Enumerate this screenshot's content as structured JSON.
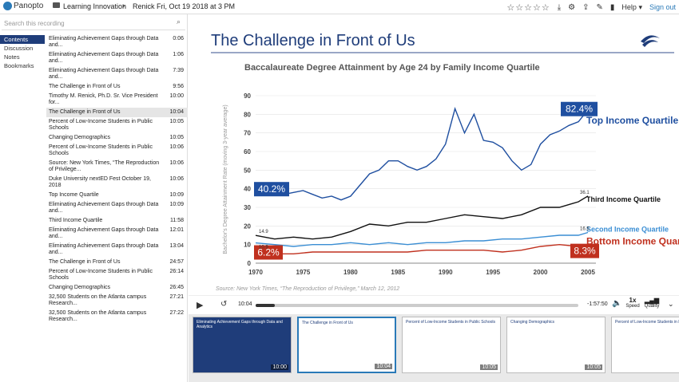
{
  "topbar": {
    "logo_text": "Panopto",
    "folder": "Learning Innovation",
    "session": "Renick Fri, Oct 19 2018 at 3 PM",
    "help_label": "Help",
    "signout_label": "Sign out"
  },
  "sidebar": {
    "search_placeholder": "Search this recording",
    "tabs": [
      "Contents",
      "Discussion",
      "Notes",
      "Bookmarks"
    ],
    "items": [
      {
        "title": "Eliminating Achievement Gaps through Data and...",
        "time": "0:06"
      },
      {
        "title": "Eliminating Achievement Gaps through Data and...",
        "time": "1:06"
      },
      {
        "title": "Eliminating Achievement Gaps through Data and...",
        "time": "7:39"
      },
      {
        "title": "The Challenge in Front of Us",
        "time": "9:56"
      },
      {
        "title": "Timothy M. Renick, Ph.D. Sr. Vice President for...",
        "time": "10:00"
      },
      {
        "title": "The Challenge in Front of Us",
        "time": "10:04"
      },
      {
        "title": "Percent of Low-Income Students in Public Schools",
        "time": "10:05"
      },
      {
        "title": "Changing Demographics",
        "time": "10:05"
      },
      {
        "title": "Percent of Low-Income Students in Public Schools",
        "time": "10:06"
      },
      {
        "title": "Source: New York Times, “The Reproduction of Privilege...",
        "time": "10:06"
      },
      {
        "title": "Duke University nextED Fest October 19, 2018",
        "time": "10:06"
      },
      {
        "title": "Top Income Quartile",
        "time": "10:09"
      },
      {
        "title": "Eliminating Achievement Gaps through Data and...",
        "time": "10:09"
      },
      {
        "title": "Third Income Quartile",
        "time": "11:58"
      },
      {
        "title": "Eliminating Achievement Gaps through Data and...",
        "time": "12:01"
      },
      {
        "title": "Eliminating Achievement Gaps through Data and...",
        "time": "13:04"
      },
      {
        "title": "The Challenge in Front of Us",
        "time": "24:57"
      },
      {
        "title": "Percent of Low-Income Students in Public Schools",
        "time": "26:14"
      },
      {
        "title": "Changing Demographics",
        "time": "26:45"
      },
      {
        "title": "32,500 Students on the Atlanta campus Research...",
        "time": "27:21"
      },
      {
        "title": "32,500 Students on the Atlanta campus Research...",
        "time": "27:22"
      }
    ]
  },
  "slide": {
    "title": "The Challenge in Front of Us",
    "source": "Source: New York Times, “The Reproduction of Privilege,” March 12, 2012"
  },
  "chart_data": {
    "type": "line",
    "title": "Baccalaureate Degree Attainment by Age 24 by Family Income Quartile",
    "ylabel": "Bachelor's Degree Attainment Rate (moving 3-year average)",
    "ylim": [
      0,
      90
    ],
    "xlim": [
      1970,
      2005
    ],
    "x_ticks": [
      1970,
      1975,
      1980,
      1985,
      1990,
      1995,
      2000,
      2005
    ],
    "y_ticks": [
      0,
      10,
      20,
      30,
      40,
      50,
      60,
      70,
      80,
      90
    ],
    "series": [
      {
        "name": "Top Income Quartile",
        "color": "#1f4fa0",
        "x": [
          1970,
          1971,
          1972,
          1973,
          1974,
          1975,
          1976,
          1977,
          1978,
          1979,
          1980,
          1981,
          1982,
          1983,
          1984,
          1985,
          1986,
          1987,
          1988,
          1989,
          1990,
          1991,
          1992,
          1993,
          1994,
          1995,
          1996,
          1997,
          1998,
          1999,
          2000,
          2001,
          2002,
          2003,
          2004,
          2005
        ],
        "y": [
          40.2,
          42,
          38,
          37,
          38,
          39,
          37,
          35,
          36,
          34,
          36,
          42,
          48,
          50,
          55,
          55,
          52,
          50,
          52,
          56,
          64,
          83,
          70,
          80,
          66,
          65,
          62,
          55,
          50,
          53,
          64,
          69,
          71,
          74,
          76,
          82.4
        ]
      },
      {
        "name": "Third Income Quartile",
        "color": "#111111",
        "x": [
          1970,
          1972,
          1974,
          1976,
          1978,
          1980,
          1982,
          1984,
          1986,
          1988,
          1990,
          1992,
          1994,
          1996,
          1998,
          2000,
          2002,
          2004,
          2005
        ],
        "y": [
          14.9,
          13,
          14,
          13,
          14,
          17,
          21,
          20,
          22,
          22,
          24,
          26,
          25,
          24,
          26,
          30,
          30,
          33,
          36.1
        ]
      },
      {
        "name": "Second Income Quartile",
        "color": "#3a8ed4",
        "x": [
          1970,
          1972,
          1974,
          1976,
          1978,
          1980,
          1982,
          1984,
          1986,
          1988,
          1990,
          1992,
          1994,
          1996,
          1998,
          2000,
          2002,
          2004,
          2005
        ],
        "y": [
          10.9,
          10,
          9,
          10,
          10,
          11,
          10,
          11,
          10,
          11,
          11,
          12,
          12,
          13,
          13,
          14,
          15,
          15,
          16.5
        ]
      },
      {
        "name": "Bottom Income Quartile",
        "color": "#c0301e",
        "x": [
          1970,
          1972,
          1974,
          1976,
          1978,
          1980,
          1982,
          1984,
          1986,
          1988,
          1990,
          1992,
          1994,
          1996,
          1998,
          2000,
          2002,
          2004,
          2005
        ],
        "y": [
          6.2,
          5,
          5,
          6,
          6,
          6,
          6,
          6,
          6,
          7,
          7,
          7,
          7,
          6,
          7,
          9,
          10,
          9,
          8.3
        ]
      }
    ],
    "callouts": [
      "82.4%",
      "40.2%",
      "6.2%",
      "8.3%"
    ],
    "small_labels": [
      "14.9",
      "10.9",
      "36.1",
      "16.5"
    ]
  },
  "player": {
    "current_time": "10:04",
    "remaining_time": "-1:57:50",
    "speed_value": "1x",
    "speed_label": "Speed",
    "quality_label": "Quality",
    "progress_fraction": 0.06
  },
  "thumbs": [
    {
      "title": "Eliminating Achievement Gaps through Data and Analytics",
      "time": "10:00"
    },
    {
      "title": "The Challenge in Front of Us",
      "time": "10:04"
    },
    {
      "title": "Percent of Low-Income Students in Public Schools",
      "time": "10:05"
    },
    {
      "title": "Changing Demographics",
      "time": "10:05"
    },
    {
      "title": "Percent of Low-Income Students in Public Schools",
      "time": ""
    }
  ]
}
